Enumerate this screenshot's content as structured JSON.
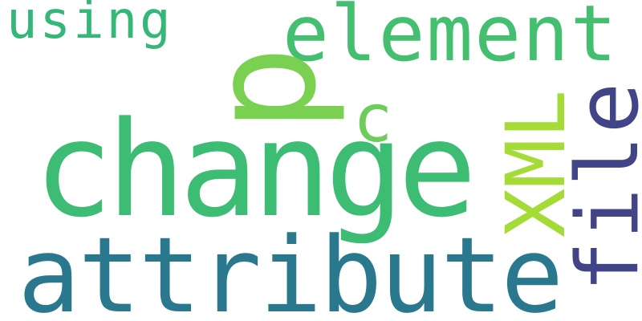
{
  "words": [
    {
      "text": "using",
      "color": "#35b779"
    },
    {
      "text": "element",
      "color": "#44bf70"
    },
    {
      "text": "p",
      "color": "#7ad151"
    },
    {
      "text": "c",
      "color": "#6ccd5a"
    },
    {
      "text": "change",
      "color": "#3dbc74"
    },
    {
      "text": "XML",
      "color": "#a5db36"
    },
    {
      "text": "file",
      "color": "#414487"
    },
    {
      "text": "attribute",
      "color": "#2a788e"
    }
  ]
}
